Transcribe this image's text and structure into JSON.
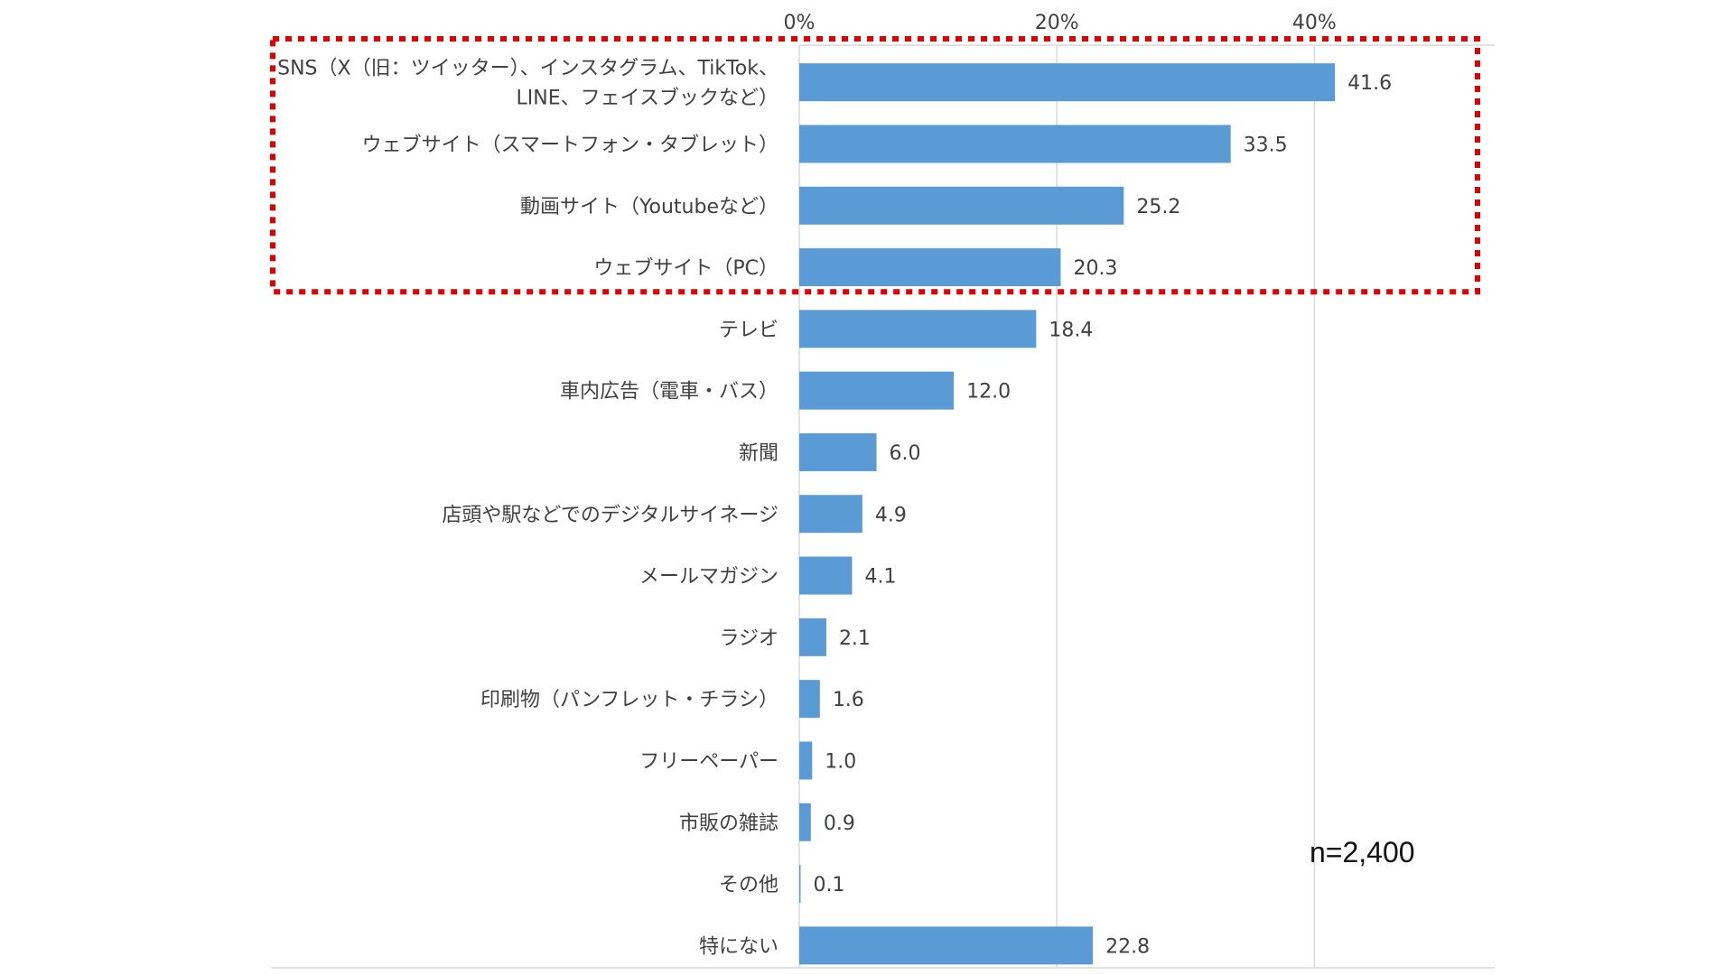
{
  "chart_data": {
    "type": "bar",
    "orientation": "horizontal",
    "categories": [
      "SNS（X（旧：ツイッター）、インスタグラム、TikTok、LINE、フェイスブックなど）",
      "ウェブサイト（スマートフォン・タブレット）",
      "動画サイト（Youtubeなど）",
      "ウェブサイト（PC）",
      "テレビ",
      "車内広告（電車・バス）",
      "新聞",
      "店頭や駅などでのデジタルサイネージ",
      "メールマガジン",
      "ラジオ",
      "印刷物（パンフレット・チラシ）",
      "フリーペーパー",
      "市販の雑誌",
      "その他",
      "特にない"
    ],
    "label_lines": [
      [
        "SNS（X（旧：ツイッター）、インスタグラム、TikTok、",
        "LINE、フェイスブックなど）"
      ],
      [
        "ウェブサイト（スマートフォン・タブレット）"
      ],
      [
        "動画サイト（Youtubeなど）"
      ],
      [
        "ウェブサイト（PC）"
      ],
      [
        "テレビ"
      ],
      [
        "車内広告（電車・バス）"
      ],
      [
        "新聞"
      ],
      [
        "店頭や駅などでのデジタルサイネージ"
      ],
      [
        "メールマガジン"
      ],
      [
        "ラジオ"
      ],
      [
        "印刷物（パンフレット・チラシ）"
      ],
      [
        "フリーペーパー"
      ],
      [
        "市販の雑誌"
      ],
      [
        "その他"
      ],
      [
        "特にない"
      ]
    ],
    "values": [
      41.6,
      33.5,
      25.2,
      20.3,
      18.4,
      12.0,
      6.0,
      4.9,
      4.1,
      2.1,
      1.6,
      1.0,
      0.9,
      0.1,
      22.8
    ],
    "value_labels": [
      "41.6",
      "33.5",
      "25.2",
      "20.3",
      "18.4",
      "12.0",
      "6.0",
      "4.9",
      "4.1",
      "2.1",
      "1.6",
      "1.0",
      "0.9",
      "0.1",
      "22.8"
    ],
    "x_ticks": [
      {
        "value": 0,
        "label": "0%"
      },
      {
        "value": 20,
        "label": "20%"
      },
      {
        "value": 40,
        "label": "40%"
      }
    ],
    "xlim": [
      0,
      54
    ],
    "grid": true,
    "bar_color": "#5b9bd5",
    "gridline_color": "#d9d9d9",
    "highlight": {
      "covers_categories": [
        0,
        1,
        2,
        3
      ],
      "color": "#e00000",
      "style": "dotted"
    },
    "annotation": "n=2,400"
  }
}
